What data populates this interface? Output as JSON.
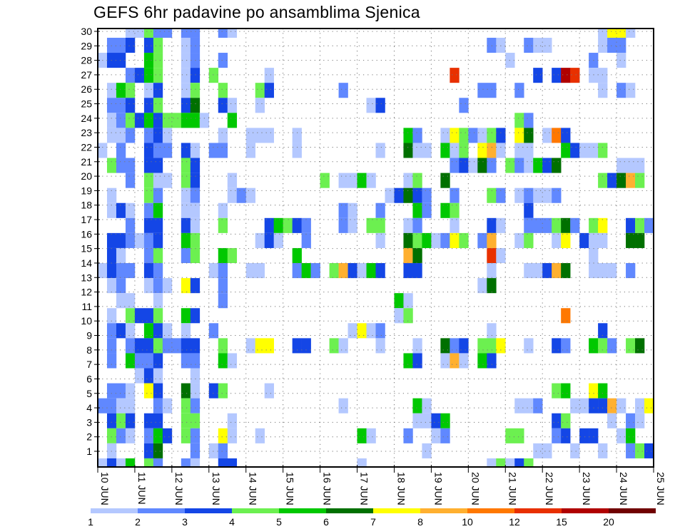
{
  "chart_data": {
    "type": "heatmap",
    "title": "GEFS 6hr padavine po ansamblima Sjenica",
    "xlabel": "",
    "ylabel": "",
    "x_tick_labels": [
      "10 JUN",
      "11 JUN",
      "12 JUN",
      "13 JUN",
      "14 JUN",
      "15 JUN",
      "16 JUN",
      "17 JUN",
      "18 JUN",
      "19 JUN",
      "20 JUN",
      "21 JUN",
      "22 JUN",
      "23 JUN",
      "24 JUN",
      "25 JUN"
    ],
    "steps_per_day": 4,
    "y_tick_labels": [
      "1",
      "2",
      "3",
      "4",
      "5",
      "6",
      "7",
      "8",
      "9",
      "10",
      "11",
      "12",
      "13",
      "14",
      "15",
      "16",
      "17",
      "18",
      "19",
      "20",
      "21",
      "22",
      "23",
      "24",
      "25",
      "26",
      "27",
      "28",
      "29",
      "30"
    ],
    "grid": "dotted",
    "legend": {
      "placement": "bottom",
      "bins": [
        {
          "code": "1",
          "color": "#b4c8ff",
          "label": "1"
        },
        {
          "code": "2",
          "color": "#6088ff",
          "label": "2"
        },
        {
          "code": "3",
          "color": "#1446e6",
          "label": "3"
        },
        {
          "code": "4",
          "color": "#6cf050",
          "label": "4"
        },
        {
          "code": "5",
          "color": "#00c800",
          "label": "5"
        },
        {
          "code": "6",
          "color": "#007000",
          "label": "6"
        },
        {
          "code": "7",
          "color": "#ffff00",
          "label": "7"
        },
        {
          "code": "8",
          "color": "#ffb030",
          "label": "8"
        },
        {
          "code": "9",
          "color": "#ff7800",
          "label": "10"
        },
        {
          "code": "a",
          "color": "#e83000",
          "label": "12"
        },
        {
          "code": "b",
          "color": "#b00000",
          "label": "15"
        },
        {
          "code": "c",
          "color": "#700000",
          "label": "20"
        }
      ]
    },
    "rows_top_to_bottom": [
      "...11422.22..21.......................................1771...",
      ".223.34..12...............................21..211.....122.......",
      "133..54..12..2..............................1........2..1......",
      "...2354..13.4.....1...................a........3.3ba.11.....",
      ".154.13..14..4...43.......2..............22..2........1.21..",
      ".223.34..36..31..1...........13........2....................",
      ".12435344551..5..............................42........",
      ".112.231.....1..111..1...........52..1742143.76.193.........",
      "1.2..322.31.22..1....1........1..611.514.781.11...53114.....",
      ".422.33..43...........................23162.421536......111",
      "...2.411.43...1.........4.1151...14..6................43684",
      ".1...42..12...121..............13632..2...42.12112..........",
      ".131.25..11..1............21..2...52.54.......3.............",
      "...2.33..31..4....35432...21.44..12...1...31..222462.47..342",
      ".332123..54......131..2.......1..6451274.28..14..17.311..66.",
      ".31..24..24..54......5...........86.......a1.........1......",
      "1322.32.....12..11...252.483153..33.......1...11386..111.2..",
      ".12..121.73..2...........................16.................",
      "..11..1......2..................51..........................",
      ".1.4334..53.....................14................9.........",
      ".231.531.1..2..............1712...........1...........3.....",
      ".2.23342233..4..177..33..41...1...1..623.447..1..32..542.46.",
      ".2.5223..22..51..................53..181.53.................",
      "....131...1.................................................",
      ".221.73..61.34....1..............................45..75.....",
      "2211..21.42...............1.......51.........112...113381.17.",
      ".343.33..44...1...................1135...........34....1.21.",
      ".421.253.42..71..1..........51...2..12......44...23.33..15.",
      ".1...36...2.12.....................1...........11..1..1..243",
      "1315.42..21..33.............1.............14134............."
    ]
  }
}
